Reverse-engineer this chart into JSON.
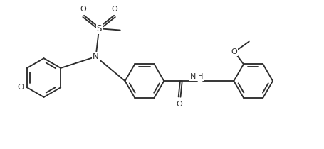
{
  "bg_color": "#ffffff",
  "line_color": "#2d2d2d",
  "line_width": 1.35,
  "font_size": 8.0,
  "figsize": [
    4.56,
    2.1
  ],
  "dpi": 100,
  "xlim": [
    0.0,
    10.0
  ],
  "ylim": [
    0.0,
    4.6
  ]
}
